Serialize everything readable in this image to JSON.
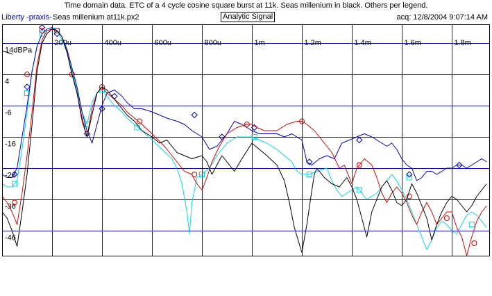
{
  "header": {
    "title": "Time domain data. ETC of a 4 cycle cosine square burst at 11k. Seas millenium in black. Others per legend.",
    "source": "Liberty -praxis-",
    "file": "Seas millenium at11k.px2",
    "mode": "Analytic Signal",
    "acq": "acq: 12/8/2004 9:07:14 AM"
  },
  "chart_data": {
    "type": "line",
    "xlim": [
      0,
      0.00195
    ],
    "ylim": [
      -54,
      20
    ],
    "x_ticks": [
      0.0002,
      0.0004,
      0.0006,
      0.0008,
      0.001,
      0.0012,
      0.0014,
      0.0016,
      0.0018
    ],
    "x_tick_labels": [
      "200u",
      "400u",
      "600u",
      "800u",
      "1m",
      "1.2m",
      "1.4m",
      "1.6m",
      "1.8m"
    ],
    "y_ticks": [
      14,
      4,
      -6,
      -16,
      -26,
      -36,
      -46
    ],
    "y_tick_labels": [
      "14dBPa",
      "4",
      "-6",
      "-16",
      "-26",
      "-36",
      "-46"
    ],
    "grid": true,
    "series": [
      {
        "color": "#000000",
        "marker": "none",
        "x": [
          0,
          2e-05,
          4e-05,
          6e-05,
          8e-05,
          0.0001,
          0.00012,
          0.00014,
          0.00016,
          0.00018,
          0.0002,
          0.00022,
          0.00024,
          0.00026,
          0.00028,
          0.0003,
          0.00032,
          0.00034,
          0.00036,
          0.00038,
          0.0004,
          0.00042,
          0.00044,
          0.00046,
          0.00048,
          0.0005,
          0.00053,
          0.00056,
          0.0006,
          0.00063,
          0.00066,
          0.0007,
          0.00073,
          0.00076,
          0.0008,
          0.00082,
          0.00084,
          0.00086,
          0.00088,
          0.0009,
          0.00093,
          0.00096,
          0.001,
          0.00103,
          0.00106,
          0.0011,
          0.00113,
          0.00115,
          0.00117,
          0.0012,
          0.00122,
          0.00124,
          0.00125,
          0.00126,
          0.00127,
          0.00129,
          0.00132,
          0.00135,
          0.00138,
          0.0014,
          0.00142,
          0.00144,
          0.00146,
          0.00148,
          0.0015,
          0.00152,
          0.00154,
          0.00156,
          0.00158,
          0.0016,
          0.00162,
          0.00164,
          0.00166,
          0.00168,
          0.0017,
          0.00172,
          0.00174,
          0.00176,
          0.00178,
          0.0018,
          0.00182,
          0.00184,
          0.00186,
          0.00188,
          0.0019,
          0.00192,
          0.00194
        ],
        "y": [
          -40,
          -42,
          -46,
          -51,
          -40,
          -28,
          -12,
          5,
          14,
          17,
          18.5,
          18,
          16,
          11,
          4,
          -2,
          -10,
          -16,
          -9,
          -2,
          0,
          -1,
          -3,
          -5,
          -7,
          -9,
          -11,
          -14,
          -16,
          -18,
          -17,
          -21,
          -22,
          -23,
          -22,
          -24,
          -28,
          -25,
          -22,
          -24,
          -27,
          -23,
          -18,
          -20,
          -22,
          -25,
          -30,
          -37,
          -45,
          -53,
          -44,
          -33,
          -28,
          -26,
          -27,
          -29,
          -31,
          -32,
          -29,
          -32,
          -36,
          -42,
          -48,
          -40,
          -36,
          -32,
          -30,
          -33,
          -37,
          -38,
          -36,
          -31,
          -34,
          -38,
          -42,
          -49,
          -44,
          -40,
          -37,
          -35,
          -36,
          -38,
          -40,
          -38,
          -35,
          -33,
          -31
        ]
      },
      {
        "color": "#e00000",
        "marker": "circle",
        "x": [
          0,
          2e-05,
          4e-05,
          6e-05,
          8e-05,
          0.0001,
          0.00012,
          0.00014,
          0.00016,
          0.00018,
          0.0002,
          0.00022,
          0.00024,
          0.00026,
          0.00028,
          0.0003,
          0.00032,
          0.00034,
          0.00036,
          0.00038,
          0.0004,
          0.00042,
          0.00045,
          0.00048,
          0.0005,
          0.00053,
          0.00056,
          0.0006,
          0.00065,
          0.0007,
          0.00073,
          0.00076,
          0.00078,
          0.0008,
          0.00082,
          0.00084,
          0.00087,
          0.0009,
          0.00094,
          0.00098,
          0.001,
          0.00102,
          0.00105,
          0.0011,
          0.00114,
          0.00118,
          0.0012,
          0.00122,
          0.00125,
          0.00128,
          0.00132,
          0.00135,
          0.00137,
          0.00139,
          0.0014,
          0.00142,
          0.00145,
          0.00148,
          0.0015,
          0.00152,
          0.00154,
          0.00156,
          0.00158,
          0.0016,
          0.00162,
          0.00164,
          0.00166,
          0.00168,
          0.0017,
          0.00172,
          0.00174,
          0.00176,
          0.00178,
          0.0018,
          0.00182,
          0.00184,
          0.00186,
          0.00188,
          0.0019,
          0.00192,
          0.00194
        ],
        "y": [
          -35,
          -37,
          -40,
          -44,
          -34,
          -22,
          -8,
          7,
          15,
          18,
          18.5,
          18,
          16,
          11,
          4,
          -2,
          -11,
          -16,
          -7,
          -2,
          0,
          -2,
          -4,
          -6,
          -8,
          -10,
          -12,
          -15,
          -19,
          -24,
          -27,
          -28,
          -31,
          -33,
          -29,
          -24,
          -19,
          -15,
          -13,
          -12,
          -12,
          -13,
          -14,
          -14,
          -12,
          -11,
          -11,
          -12,
          -14,
          -17,
          -21,
          -26,
          -25,
          -29,
          -31,
          -26,
          -23,
          -25,
          -29,
          -34,
          -37,
          -34,
          -32,
          -34,
          -37,
          -41,
          -44,
          -40,
          -37,
          -40,
          -44,
          -42,
          -40,
          -40,
          -45,
          -48,
          -54,
          -48,
          -43,
          -40,
          -38
        ],
        "markers_x": [
          5e-05,
          0.0001,
          0.00016,
          0.00022,
          0.00028,
          0.0004,
          0.00055,
          0.00077,
          0.00098,
          0.0012,
          0.00143,
          0.00163,
          0.00178,
          0.00189
        ],
        "markers_y": [
          -37,
          4,
          18,
          18,
          4,
          0,
          -11,
          -28,
          -12,
          -11,
          -25,
          -35,
          -42,
          -50
        ]
      },
      {
        "color": "#0000d0",
        "marker": "diamond",
        "x": [
          0,
          2e-05,
          4e-05,
          6e-05,
          8e-05,
          0.0001,
          0.00012,
          0.00014,
          0.00016,
          0.00018,
          0.0002,
          0.00022,
          0.00024,
          0.00026,
          0.00028,
          0.0003,
          0.00032,
          0.00034,
          0.00036,
          0.00038,
          0.0004,
          0.00042,
          0.00045,
          0.00048,
          0.0005,
          0.00053,
          0.00056,
          0.0006,
          0.00063,
          0.00066,
          0.0007,
          0.00073,
          0.00076,
          0.0008,
          0.00083,
          0.00086,
          0.0009,
          0.00093,
          0.00096,
          0.001,
          0.00103,
          0.00106,
          0.0011,
          0.00113,
          0.00116,
          0.0012,
          0.00122,
          0.00124,
          0.00127,
          0.0013,
          0.00133,
          0.00136,
          0.00139,
          0.00142,
          0.00145,
          0.00148,
          0.0015,
          0.00152,
          0.00154,
          0.00156,
          0.00158,
          0.0016,
          0.00162,
          0.00164,
          0.00166,
          0.00168,
          0.0017,
          0.00172,
          0.00174,
          0.00176,
          0.00178,
          0.0018,
          0.00182,
          0.00184,
          0.00186,
          0.00188,
          0.0019,
          0.00192,
          0.00194
        ],
        "y": [
          -28,
          -29,
          -29,
          -26,
          -16,
          -6,
          5,
          13,
          17,
          18.5,
          19,
          18,
          16,
          12,
          6,
          0,
          -8,
          -14,
          -18,
          -12,
          -6,
          -2,
          -1,
          -3,
          -5,
          -7,
          -7,
          -8,
          -9,
          -10,
          -11,
          -12,
          -14,
          -16,
          -20,
          -19,
          -15,
          -11,
          -12,
          -14,
          -15,
          -15,
          -15,
          -16,
          -15,
          -17,
          -24,
          -25,
          -23,
          -22,
          -23,
          -18,
          -17,
          -16,
          -15,
          -16,
          -17,
          -18,
          -19,
          -18,
          -20,
          -23,
          -25,
          -26,
          -30,
          -29,
          -27,
          -27,
          -28,
          -27,
          -26,
          -26,
          -25,
          -25,
          -26,
          -25,
          -24,
          -23,
          -24
        ],
        "markers_x": [
          5e-05,
          0.0001,
          0.00016,
          0.00022,
          0.00034,
          0.0004,
          0.00045,
          0.00077,
          0.00088,
          0.00101,
          0.00123,
          0.00143,
          0.00163,
          0.00183
        ],
        "markers_y": [
          -28,
          0,
          19,
          17,
          -15,
          -7,
          -3,
          -9,
          -16,
          -13,
          -24,
          -17,
          -28,
          -25
        ]
      },
      {
        "color": "#00d8e8",
        "marker": "square",
        "x": [
          0,
          2e-05,
          4e-05,
          6e-05,
          8e-05,
          0.0001,
          0.00012,
          0.00014,
          0.00016,
          0.00018,
          0.0002,
          0.00022,
          0.00024,
          0.00026,
          0.00028,
          0.0003,
          0.00032,
          0.00034,
          0.00036,
          0.00038,
          0.0004,
          0.00042,
          0.00045,
          0.00048,
          0.0005,
          0.00053,
          0.00056,
          0.0006,
          0.00064,
          0.00068,
          0.0007,
          0.00072,
          0.00074,
          0.00075,
          0.00076,
          0.00078,
          0.0008,
          0.00083,
          0.00086,
          0.0009,
          0.00094,
          0.00098,
          0.001,
          0.00103,
          0.00106,
          0.0011,
          0.00113,
          0.00116,
          0.00118,
          0.0012,
          0.00123,
          0.00126,
          0.0013,
          0.00132,
          0.00134,
          0.00136,
          0.00138,
          0.0014,
          0.00142,
          0.00144,
          0.00146,
          0.00148,
          0.0015,
          0.00152,
          0.00154,
          0.00156,
          0.00158,
          0.0016,
          0.00162,
          0.00164,
          0.00166,
          0.00168,
          0.0017,
          0.00172,
          0.00174,
          0.00176,
          0.00178,
          0.0018,
          0.00182,
          0.00184,
          0.00186,
          0.00188,
          0.0019,
          0.00192,
          0.00194
        ],
        "y": [
          -31,
          -32,
          -32,
          -30,
          -20,
          -8,
          5,
          13,
          17,
          18,
          18.5,
          18,
          15,
          11,
          5,
          -1,
          -8,
          -12,
          -5,
          -2,
          -1,
          -3,
          -6,
          -8,
          -10,
          -12,
          -14,
          -17,
          -20,
          -23,
          -26,
          -31,
          -40,
          -47,
          -37,
          -29,
          -28,
          -26,
          -22,
          -18,
          -16,
          -16,
          -16,
          -17,
          -18,
          -20,
          -22,
          -24,
          -27,
          -28,
          -28,
          -27,
          -26,
          -30,
          -33,
          -35,
          -34,
          -33,
          -32,
          -34,
          -36,
          -35,
          -34,
          -32,
          -30,
          -28,
          -30,
          -33,
          -36,
          -40,
          -44,
          -48,
          -52,
          -49,
          -45,
          -43,
          -44,
          -46,
          -47,
          -44,
          -41,
          -40,
          -41,
          -43,
          -45
        ],
        "markers_x": [
          5e-05,
          0.0001,
          0.00016,
          0.00022,
          0.00034,
          0.0004,
          0.00054,
          0.0008,
          0.00101,
          0.00123,
          0.00143,
          0.00163,
          0.00188
        ],
        "markers_y": [
          -31,
          -2,
          17,
          18,
          -12,
          -1,
          -13,
          -28,
          -16,
          -28,
          -33,
          -29,
          -44
        ]
      }
    ]
  }
}
